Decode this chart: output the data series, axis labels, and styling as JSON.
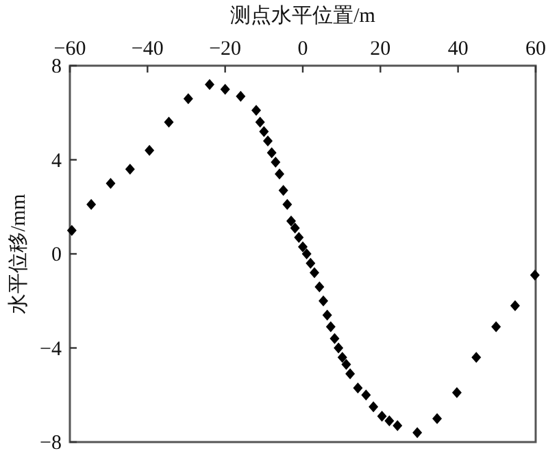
{
  "chart_data": {
    "type": "scatter",
    "xlabel": "测点水平位置/m",
    "ylabel": "水平位移/mm",
    "xlim": [
      -60,
      60
    ],
    "xticks": [
      -60,
      -40,
      -20,
      0,
      20,
      40,
      60
    ],
    "ylim": [
      -8,
      8
    ],
    "yticks": [
      -8,
      -4,
      0,
      4,
      8
    ],
    "marker": "diamond",
    "series": [
      {
        "color": "#000000",
        "x": [
          -59.5,
          -54.5,
          -49.5,
          -44.5,
          -39.5,
          -34.5,
          -29.5,
          -24,
          -20,
          -16,
          -12,
          -11,
          -10,
          -9,
          -8,
          -7,
          -6,
          -5,
          -4,
          -3,
          -2,
          -1,
          0,
          1,
          2,
          3,
          4.3,
          5.3,
          6.3,
          7.2,
          8.2,
          9.2,
          10.2,
          11.2,
          12.2,
          14.2,
          16.3,
          18.2,
          20.4,
          22.3,
          24.4,
          29.5,
          34.6,
          39.7,
          44.7,
          49.8,
          54.7,
          59.8
        ],
        "values": [
          1.0,
          2.1,
          3.0,
          3.6,
          4.4,
          5.6,
          6.6,
          7.2,
          7.0,
          6.7,
          6.1,
          5.6,
          5.2,
          4.8,
          4.3,
          3.9,
          3.4,
          2.7,
          2.1,
          1.4,
          1.1,
          0.7,
          0.3,
          0.0,
          -0.4,
          -0.8,
          -1.4,
          -2.0,
          -2.6,
          -3.1,
          -3.6,
          -4.0,
          -4.4,
          -4.7,
          -5.1,
          -5.7,
          -6.0,
          -6.5,
          -6.9,
          -7.1,
          -7.3,
          -7.6,
          -7.0,
          -5.9,
          -4.4,
          -3.1,
          -2.2,
          -0.9
        ]
      }
    ]
  }
}
